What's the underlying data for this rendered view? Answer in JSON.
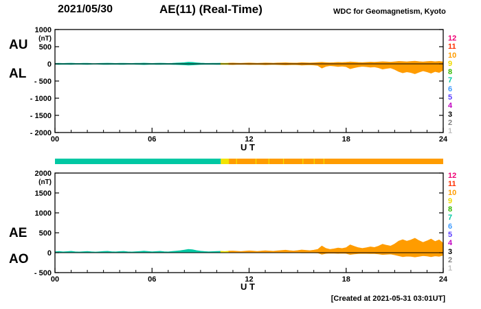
{
  "header": {
    "date": "2021/05/30",
    "title": "AE(11) (Real-Time)",
    "credit": "WDC for Geomagnetism, Kyoto"
  },
  "footer": {
    "created_note": "[Created at 2021-05-31 03:01UT]"
  },
  "station_legend": {
    "values": [
      "12",
      "11",
      "10",
      "9",
      "8",
      "7",
      "6",
      "5",
      "4",
      "3",
      "2",
      "1"
    ],
    "colors": [
      "#ef0074",
      "#ff2f00",
      "#ff9c00",
      "#efd900",
      "#36b800",
      "#00c8a3",
      "#3e9bff",
      "#5a3cff",
      "#c000c0",
      "#000000",
      "#808080",
      "#c0c0c0"
    ]
  },
  "colorbar": {
    "tick_color": "#f2e300",
    "segments": [
      {
        "from": 0,
        "to": 10.25,
        "color": "#00c8a3"
      },
      {
        "from": 10.25,
        "to": 10.75,
        "color": "#f2e300"
      },
      {
        "from": 10.75,
        "to": 24,
        "color": "#ff9c00"
      }
    ],
    "yellow_ticks": [
      11.2,
      12.4,
      13.2,
      14.1,
      15.3,
      16.0,
      16.6
    ]
  },
  "chart_data": [
    {
      "type": "area",
      "title": "AU and AL auroral electrojet indices",
      "unit": "(nT)",
      "ylim": [
        -2000,
        1000
      ],
      "yticks": [
        1000,
        500,
        0,
        -500,
        -1000,
        -1500,
        -2000
      ],
      "ytick_labels": [
        "1000",
        "500",
        "0",
        "- 500",
        "- 1000",
        "- 1500",
        "- 2000"
      ],
      "xlim": [
        0,
        24
      ],
      "xticks": [
        0,
        6,
        12,
        18,
        24
      ],
      "xtick_labels": [
        "00",
        "06",
        "12",
        "18",
        "24"
      ],
      "xlabel": "U T",
      "x_step": 0.25,
      "color_segments": [
        {
          "from": 0,
          "to": 10.25,
          "color": "#00c8a3"
        },
        {
          "from": 10.25,
          "to": 10.75,
          "color": "#f2e300"
        },
        {
          "from": 10.75,
          "to": 24,
          "color": "#ff9c00"
        }
      ],
      "series": [
        {
          "name": "AU",
          "values": [
            12,
            15,
            10,
            14,
            18,
            12,
            9,
            13,
            16,
            11,
            8,
            12,
            15,
            18,
            13,
            10,
            14,
            17,
            12,
            9,
            13,
            16,
            20,
            15,
            11,
            14,
            18,
            13,
            10,
            15,
            22,
            28,
            35,
            48,
            42,
            30,
            20,
            15,
            12,
            14,
            16,
            18,
            15,
            20,
            22,
            18,
            15,
            19,
            23,
            20,
            16,
            21,
            25,
            22,
            18,
            23,
            28,
            32,
            26,
            22,
            27,
            33,
            29,
            24,
            30,
            38,
            45,
            36,
            30,
            35,
            42,
            38,
            45,
            55,
            48,
            40,
            36,
            42,
            50,
            45,
            52,
            60,
            55,
            48,
            58,
            70,
            65,
            58,
            68,
            75,
            62,
            55,
            65,
            72,
            60,
            70,
            55
          ]
        },
        {
          "name": "AL",
          "values": [
            -10,
            -14,
            -9,
            -12,
            -16,
            -11,
            -8,
            -12,
            -15,
            -10,
            -7,
            -11,
            -14,
            -17,
            -12,
            -9,
            -13,
            -16,
            -11,
            -8,
            -12,
            -15,
            -19,
            -14,
            -10,
            -13,
            -17,
            -12,
            -9,
            -14,
            -18,
            -22,
            -28,
            -35,
            -30,
            -22,
            -16,
            -12,
            -10,
            -12,
            -14,
            -16,
            -13,
            -18,
            -20,
            -16,
            -13,
            -17,
            -21,
            -18,
            -14,
            -19,
            -23,
            -20,
            -16,
            -21,
            -26,
            -30,
            -24,
            -20,
            -25,
            -35,
            -30,
            -26,
            -32,
            -45,
            -120,
            -70,
            -50,
            -60,
            -75,
            -65,
            -80,
            -140,
            -110,
            -85,
            -70,
            -80,
            -95,
            -85,
            -110,
            -150,
            -130,
            -115,
            -160,
            -220,
            -260,
            -230,
            -250,
            -285,
            -240,
            -200,
            -230,
            -270,
            -220,
            -250,
            -180
          ]
        }
      ]
    },
    {
      "type": "area",
      "title": "AE and AO auroral electrojet indices",
      "unit": "(nT)",
      "ylim": [
        -500,
        2000
      ],
      "yticks": [
        2000,
        1500,
        1000,
        500,
        0,
        -500
      ],
      "ytick_labels": [
        "2000",
        "1500",
        "1000",
        "500",
        "0",
        "- 500"
      ],
      "xlim": [
        0,
        24
      ],
      "xticks": [
        0,
        6,
        12,
        18,
        24
      ],
      "xtick_labels": [
        "00",
        "06",
        "12",
        "18",
        "24"
      ],
      "xlabel": "U T",
      "x_step": 0.25,
      "color_segments": [
        {
          "from": 0,
          "to": 10.25,
          "color": "#00c8a3"
        },
        {
          "from": 10.25,
          "to": 10.75,
          "color": "#f2e300"
        },
        {
          "from": 10.75,
          "to": 24,
          "color": "#ff9c00"
        }
      ],
      "series": [
        {
          "name": "AE",
          "values": [
            22,
            29,
            19,
            26,
            34,
            23,
            17,
            25,
            31,
            21,
            15,
            23,
            29,
            35,
            25,
            19,
            27,
            33,
            23,
            17,
            25,
            31,
            39,
            29,
            21,
            27,
            35,
            25,
            19,
            29,
            40,
            50,
            63,
            83,
            72,
            52,
            36,
            27,
            22,
            26,
            30,
            34,
            28,
            38,
            42,
            34,
            28,
            36,
            44,
            38,
            30,
            40,
            48,
            42,
            34,
            44,
            54,
            62,
            50,
            42,
            52,
            68,
            59,
            50,
            62,
            83,
            165,
            106,
            80,
            95,
            117,
            103,
            125,
            195,
            158,
            125,
            106,
            122,
            145,
            130,
            162,
            210,
            185,
            163,
            218,
            290,
            325,
            288,
            318,
            360,
            302,
            255,
            295,
            342,
            280,
            320,
            235
          ]
        },
        {
          "name": "AO",
          "values": [
            1,
            0.5,
            0.5,
            1,
            1,
            0.5,
            0.5,
            0.5,
            0.5,
            0.5,
            0.5,
            0.5,
            0.5,
            0.5,
            0.5,
            0.5,
            0.5,
            0.5,
            0.5,
            0.5,
            0.5,
            0.5,
            0.5,
            0.5,
            0.5,
            0.5,
            0.5,
            0.5,
            0.5,
            0.5,
            2,
            3,
            3.5,
            6.5,
            6,
            4,
            2,
            1.5,
            1,
            1,
            1,
            1,
            1,
            1,
            1,
            1,
            1,
            1,
            1,
            1,
            1,
            1,
            1,
            1,
            1,
            1,
            1,
            1,
            1,
            1,
            1,
            -1,
            -0.5,
            -1,
            -1,
            -3.5,
            -37.5,
            -17,
            -10,
            -12.5,
            -16.5,
            -13.5,
            -17.5,
            -42.5,
            -31,
            -22.5,
            -17,
            -19,
            -22.5,
            -20,
            -29,
            -45,
            -37.5,
            -33.5,
            -51,
            -75,
            -97.5,
            -86,
            -91,
            -105,
            -89,
            -72.5,
            -82.5,
            -99,
            -80,
            -90,
            -62.5
          ]
        }
      ]
    }
  ]
}
